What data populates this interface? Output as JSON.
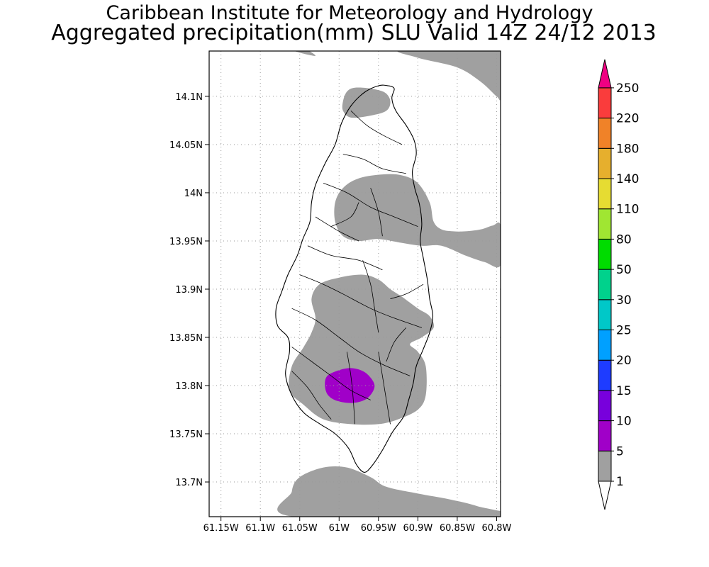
{
  "titles": {
    "line1": "Caribbean Institute for Meteorology and Hydrology",
    "line2": "Aggregated precipitation(mm) SLU Valid 14Z 24/12 2013"
  },
  "axes": {
    "lon_range": [
      -61.165,
      -60.795
    ],
    "lat_range": [
      13.664,
      14.147
    ],
    "x_ticks": [
      {
        "lon": -61.15,
        "label": "61.15W"
      },
      {
        "lon": -61.1,
        "label": "61.1W"
      },
      {
        "lon": -61.05,
        "label": "61.05W"
      },
      {
        "lon": -61.0,
        "label": "61W"
      },
      {
        "lon": -60.95,
        "label": "60.95W"
      },
      {
        "lon": -60.9,
        "label": "60.9W"
      },
      {
        "lon": -60.85,
        "label": "60.85W"
      },
      {
        "lon": -60.8,
        "label": "60.8W"
      }
    ],
    "y_ticks": [
      {
        "lat": 14.1,
        "label": "14.1N"
      },
      {
        "lat": 14.05,
        "label": "14.05N"
      },
      {
        "lat": 14.0,
        "label": "14N"
      },
      {
        "lat": 13.95,
        "label": "13.95N"
      },
      {
        "lat": 13.9,
        "label": "13.9N"
      },
      {
        "lat": 13.85,
        "label": "13.85N"
      },
      {
        "lat": 13.8,
        "label": "13.8N"
      },
      {
        "lat": 13.75,
        "label": "13.75N"
      },
      {
        "lat": 13.7,
        "label": "13.7N"
      }
    ],
    "grid": "dotted"
  },
  "colorbar": {
    "labels": [
      "1",
      "5",
      "10",
      "15",
      "20",
      "25",
      "30",
      "50",
      "80",
      "110",
      "140",
      "180",
      "220",
      "250"
    ],
    "colors": [
      "#a0a0a0",
      "#a000c8",
      "#7800dc",
      "#1e3cff",
      "#00a0ff",
      "#00c8c8",
      "#00d28c",
      "#00dc00",
      "#a0e632",
      "#e6dc32",
      "#e6af2d",
      "#f08228",
      "#fa3c3c",
      "#f00082"
    ]
  },
  "precip": {
    "units": "mm",
    "regions": [
      {
        "band": "1-5",
        "color": "#a0a0a0",
        "points": [
          [
            -61.06,
            14.148
          ],
          [
            -61.03,
            14.142
          ],
          [
            -61.05,
            14.152
          ]
        ]
      },
      {
        "band": "1-5",
        "color": "#a0a0a0",
        "points": [
          [
            -60.92,
            14.148
          ],
          [
            -60.9,
            14.14
          ],
          [
            -60.85,
            14.13
          ],
          [
            -60.82,
            14.115
          ],
          [
            -60.8,
            14.1
          ],
          [
            -60.795,
            14.1
          ],
          [
            -60.795,
            14.148
          ]
        ]
      },
      {
        "band": "1-5",
        "color": "#a0a0a0",
        "points": [
          [
            -60.995,
            14.095
          ],
          [
            -60.99,
            14.105
          ],
          [
            -60.98,
            14.109
          ],
          [
            -60.96,
            14.108
          ],
          [
            -60.942,
            14.104
          ],
          [
            -60.935,
            14.095
          ],
          [
            -60.94,
            14.085
          ],
          [
            -60.96,
            14.08
          ],
          [
            -60.985,
            14.078
          ],
          [
            -60.995,
            14.085
          ]
        ]
      },
      {
        "band": "1-5",
        "color": "#a0a0a0",
        "points": [
          [
            -60.995,
            14.005
          ],
          [
            -60.975,
            14.015
          ],
          [
            -60.945,
            14.019
          ],
          [
            -60.92,
            14.018
          ],
          [
            -60.9,
            14.01
          ],
          [
            -60.885,
            13.99
          ],
          [
            -60.88,
            13.97
          ],
          [
            -60.87,
            13.962
          ],
          [
            -60.855,
            13.96
          ],
          [
            -60.84,
            13.96
          ],
          [
            -60.82,
            13.962
          ],
          [
            -60.805,
            13.966
          ],
          [
            -60.795,
            13.966
          ],
          [
            -60.795,
            13.925
          ],
          [
            -60.815,
            13.928
          ],
          [
            -60.84,
            13.935
          ],
          [
            -60.87,
            13.945
          ],
          [
            -60.895,
            13.945
          ],
          [
            -60.92,
            13.948
          ],
          [
            -60.95,
            13.952
          ],
          [
            -60.975,
            13.95
          ],
          [
            -60.995,
            13.955
          ],
          [
            -61.005,
            13.97
          ],
          [
            -61.005,
            13.99
          ]
        ]
      },
      {
        "band": "1-5",
        "color": "#a0a0a0",
        "points": [
          [
            -61.035,
            13.89
          ],
          [
            -61.025,
            13.905
          ],
          [
            -61.0,
            13.912
          ],
          [
            -60.97,
            13.915
          ],
          [
            -60.95,
            13.91
          ],
          [
            -60.935,
            13.9
          ],
          [
            -60.92,
            13.892
          ],
          [
            -60.9,
            13.88
          ],
          [
            -60.885,
            13.872
          ],
          [
            -60.88,
            13.86
          ],
          [
            -60.895,
            13.85
          ],
          [
            -60.91,
            13.843
          ],
          [
            -60.9,
            13.835
          ],
          [
            -60.89,
            13.82
          ],
          [
            -60.89,
            13.79
          ],
          [
            -60.9,
            13.775
          ],
          [
            -60.925,
            13.765
          ],
          [
            -60.95,
            13.76
          ],
          [
            -60.985,
            13.76
          ],
          [
            -61.02,
            13.765
          ],
          [
            -61.045,
            13.78
          ],
          [
            -61.063,
            13.795
          ],
          [
            -61.06,
            13.82
          ],
          [
            -61.045,
            13.84
          ],
          [
            -61.035,
            13.855
          ],
          [
            -61.03,
            13.87
          ]
        ]
      },
      {
        "band": "1-5",
        "color": "#a0a0a0",
        "points": [
          [
            -61.058,
            13.664
          ],
          [
            -61.06,
            13.69
          ],
          [
            -61.05,
            13.705
          ],
          [
            -61.02,
            13.715
          ],
          [
            -60.99,
            13.715
          ],
          [
            -60.96,
            13.705
          ],
          [
            -60.94,
            13.695
          ],
          [
            -60.9,
            13.688
          ],
          [
            -60.86,
            13.682
          ],
          [
            -60.825,
            13.675
          ],
          [
            -60.795,
            13.664
          ]
        ]
      },
      {
        "band": "5-10",
        "color": "#a000c8",
        "points": [
          [
            -61.018,
            13.8
          ],
          [
            -61.015,
            13.81
          ],
          [
            -61.0,
            13.816
          ],
          [
            -60.983,
            13.818
          ],
          [
            -60.966,
            13.813
          ],
          [
            -60.955,
            13.8
          ],
          [
            -60.964,
            13.787
          ],
          [
            -60.982,
            13.782
          ],
          [
            -61.002,
            13.784
          ],
          [
            -61.014,
            13.79
          ]
        ]
      }
    ]
  },
  "island": {
    "name_shown": "",
    "coast": [
      [
        -60.93,
        14.108
      ],
      [
        -60.933,
        14.098
      ],
      [
        -60.928,
        14.085
      ],
      [
        -60.915,
        14.07
      ],
      [
        -60.905,
        14.055
      ],
      [
        -60.902,
        14.04
      ],
      [
        -60.907,
        14.022
      ],
      [
        -60.904,
        14.005
      ],
      [
        -60.898,
        13.988
      ],
      [
        -60.895,
        13.968
      ],
      [
        -60.897,
        13.95
      ],
      [
        -60.893,
        13.932
      ],
      [
        -60.888,
        13.91
      ],
      [
        -60.885,
        13.89
      ],
      [
        -60.881,
        13.872
      ],
      [
        -60.885,
        13.855
      ],
      [
        -60.893,
        13.838
      ],
      [
        -60.902,
        13.82
      ],
      [
        -60.906,
        13.802
      ],
      [
        -60.912,
        13.784
      ],
      [
        -60.918,
        13.768
      ],
      [
        -60.932,
        13.752
      ],
      [
        -60.945,
        13.733
      ],
      [
        -60.958,
        13.717
      ],
      [
        -60.968,
        13.71
      ],
      [
        -60.978,
        13.718
      ],
      [
        -60.988,
        13.735
      ],
      [
        -61.005,
        13.75
      ],
      [
        -61.024,
        13.76
      ],
      [
        -61.045,
        13.772
      ],
      [
        -61.06,
        13.79
      ],
      [
        -61.068,
        13.812
      ],
      [
        -61.063,
        13.835
      ],
      [
        -61.065,
        13.85
      ],
      [
        -61.078,
        13.862
      ],
      [
        -61.08,
        13.88
      ],
      [
        -61.073,
        13.897
      ],
      [
        -61.065,
        13.915
      ],
      [
        -61.053,
        13.935
      ],
      [
        -61.046,
        13.952
      ],
      [
        -61.037,
        13.97
      ],
      [
        -61.035,
        13.99
      ],
      [
        -61.03,
        14.008
      ],
      [
        -61.018,
        14.03
      ],
      [
        -61.005,
        14.05
      ],
      [
        -60.997,
        14.072
      ],
      [
        -60.985,
        14.09
      ],
      [
        -60.968,
        14.104
      ],
      [
        -60.95,
        14.111
      ],
      [
        -60.938,
        14.111
      ]
    ],
    "rivers": [
      [
        [
          -60.985,
          14.085
        ],
        [
          -60.965,
          14.07
        ],
        [
          -60.945,
          14.06
        ],
        [
          -60.92,
          14.05
        ]
      ],
      [
        [
          -60.995,
          14.04
        ],
        [
          -60.97,
          14.035
        ],
        [
          -60.945,
          14.025
        ],
        [
          -60.915,
          14.02
        ]
      ],
      [
        [
          -61.02,
          14.01
        ],
        [
          -60.99,
          14.0
        ],
        [
          -60.96,
          13.985
        ],
        [
          -60.93,
          13.975
        ],
        [
          -60.9,
          13.965
        ]
      ],
      [
        [
          -61.03,
          13.975
        ],
        [
          -61.0,
          13.96
        ],
        [
          -60.975,
          13.95
        ]
      ],
      [
        [
          -60.96,
          14.005
        ],
        [
          -60.95,
          13.98
        ],
        [
          -60.945,
          13.955
        ]
      ],
      [
        [
          -61.04,
          13.945
        ],
        [
          -61.01,
          13.935
        ],
        [
          -60.975,
          13.93
        ],
        [
          -60.945,
          13.92
        ]
      ],
      [
        [
          -61.05,
          13.915
        ],
        [
          -61.02,
          13.905
        ],
        [
          -60.995,
          13.895
        ],
        [
          -60.96,
          13.88
        ],
        [
          -60.93,
          13.87
        ],
        [
          -60.895,
          13.86
        ]
      ],
      [
        [
          -60.97,
          13.93
        ],
        [
          -60.96,
          13.905
        ],
        [
          -60.955,
          13.88
        ],
        [
          -60.95,
          13.855
        ]
      ],
      [
        [
          -61.06,
          13.88
        ],
        [
          -61.03,
          13.868
        ],
        [
          -61.0,
          13.85
        ],
        [
          -60.975,
          13.835
        ],
        [
          -60.945,
          13.822
        ],
        [
          -60.91,
          13.81
        ]
      ],
      [
        [
          -61.06,
          13.84
        ],
        [
          -61.035,
          13.825
        ],
        [
          -61.01,
          13.81
        ],
        [
          -60.985,
          13.795
        ],
        [
          -60.96,
          13.785
        ]
      ],
      [
        [
          -61.06,
          13.815
        ],
        [
          -61.04,
          13.798
        ],
        [
          -61.025,
          13.78
        ],
        [
          -61.01,
          13.765
        ]
      ],
      [
        [
          -60.99,
          13.835
        ],
        [
          -60.985,
          13.81
        ],
        [
          -60.982,
          13.785
        ],
        [
          -60.98,
          13.76
        ]
      ],
      [
        [
          -60.95,
          13.835
        ],
        [
          -60.945,
          13.81
        ],
        [
          -60.94,
          13.785
        ],
        [
          -60.935,
          13.76
        ]
      ],
      [
        [
          -60.915,
          13.86
        ],
        [
          -60.93,
          13.845
        ],
        [
          -60.94,
          13.825
        ]
      ],
      [
        [
          -60.935,
          13.89
        ],
        [
          -60.915,
          13.895
        ],
        [
          -60.893,
          13.905
        ]
      ],
      [
        [
          -60.975,
          13.99
        ],
        [
          -60.985,
          13.975
        ],
        [
          -61.01,
          13.965
        ]
      ]
    ]
  }
}
